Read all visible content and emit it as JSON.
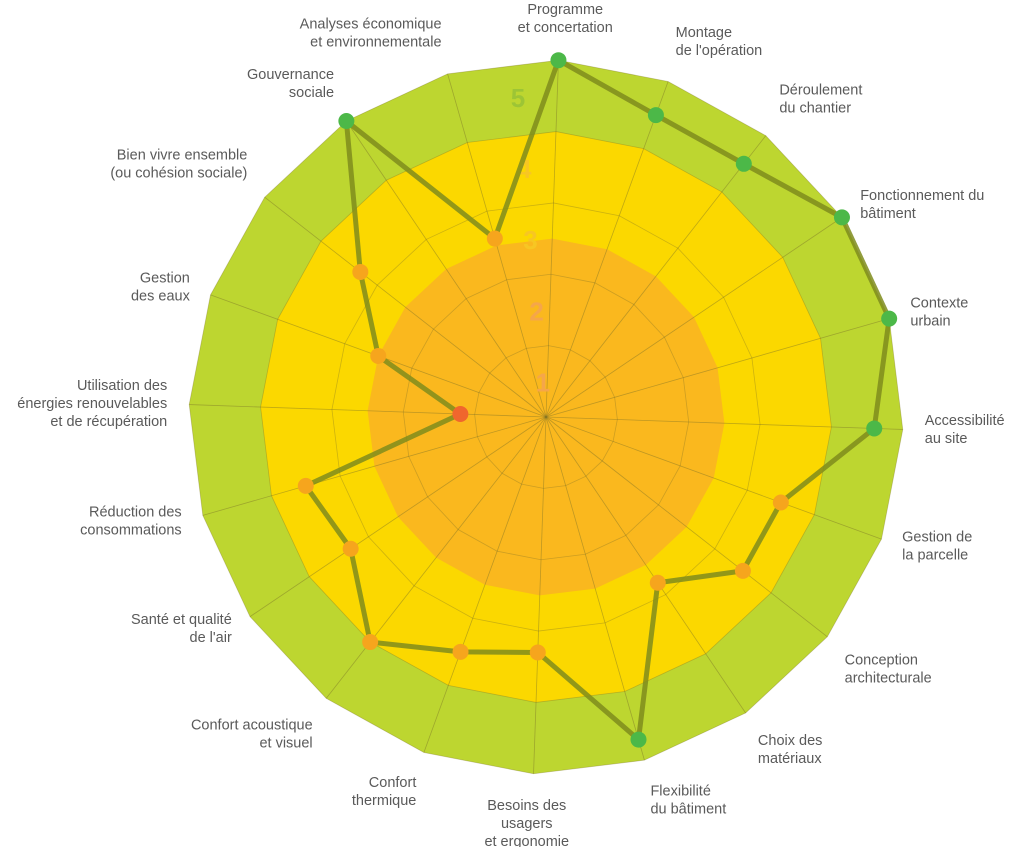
{
  "chart_data": {
    "type": "radar",
    "title": "",
    "scale": {
      "min": 0,
      "max": 5,
      "rings": [
        {
          "level": 1,
          "label": "1",
          "color": "#F5A64A"
        },
        {
          "level": 2,
          "label": "2",
          "color": "#F5A64A"
        },
        {
          "level": 3,
          "label": "3",
          "color": "#F7C623"
        },
        {
          "level": 4,
          "label": "4",
          "color": "#F7C623"
        },
        {
          "level": 5,
          "label": "5",
          "color": "#9DC535"
        }
      ],
      "zone_colors": {
        "core": "#FAB81E",
        "middle": "#FBD800",
        "outer": "#BDD630"
      }
    },
    "axes": [
      {
        "key": "programme",
        "label": [
          "Programme",
          "et concertation"
        ]
      },
      {
        "key": "montage",
        "label": [
          "Montage",
          "de l'opération"
        ]
      },
      {
        "key": "deroulement",
        "label": [
          "Déroulement",
          "du chantier"
        ]
      },
      {
        "key": "fonctionnement",
        "label": [
          "Fonctionnement du",
          "bâtiment"
        ]
      },
      {
        "key": "contexte",
        "label": [
          "Contexte",
          "urbain"
        ]
      },
      {
        "key": "accessibilite",
        "label": [
          "Accessibilité",
          "au site"
        ]
      },
      {
        "key": "parcelle",
        "label": [
          "Gestion de",
          "la parcelle"
        ]
      },
      {
        "key": "conception",
        "label": [
          "Conception",
          "architecturale"
        ]
      },
      {
        "key": "materiaux",
        "label": [
          "Choix des",
          "matériaux"
        ]
      },
      {
        "key": "flexibilite",
        "label": [
          "Flexibilité",
          "du bâtiment"
        ]
      },
      {
        "key": "besoins",
        "label": [
          "Besoins des",
          "usagers",
          "et ergonomie"
        ]
      },
      {
        "key": "confort_thermique",
        "label": [
          "Confort",
          "thermique"
        ]
      },
      {
        "key": "confort_acoustique",
        "label": [
          "Confort acoustique",
          "et visuel"
        ]
      },
      {
        "key": "sante_air",
        "label": [
          "Santé et qualité",
          "de l'air"
        ]
      },
      {
        "key": "reduction_conso",
        "label": [
          "Réduction des",
          "consommations"
        ]
      },
      {
        "key": "energies_renouvelables",
        "label": [
          "Utilisation des",
          "énergies renouvelables",
          "et de récupération"
        ]
      },
      {
        "key": "gestion_eaux",
        "label": [
          "Gestion",
          "des eaux"
        ]
      },
      {
        "key": "bien_vivre",
        "label": [
          "Bien vivre ensemble",
          "(ou cohésion sociale)"
        ]
      },
      {
        "key": "gouvernance",
        "label": [
          "Gouvernance",
          "sociale"
        ]
      },
      {
        "key": "analyses",
        "label": [
          "Analyses économique",
          "et environnementale"
        ]
      }
    ],
    "series": [
      {
        "values": [
          5,
          4.5,
          4.5,
          5,
          5,
          4.6,
          3.5,
          3.5,
          2.8,
          4.7,
          3.3,
          3.5,
          4,
          3.3,
          3.5,
          1.2,
          2.5,
          3.3,
          5,
          2.6
        ],
        "line_color": "#7F8C1C",
        "marker_colors": {
          "low": "#F0662D",
          "mid": "#F6A51D",
          "high": "#4CB848"
        }
      }
    ]
  }
}
